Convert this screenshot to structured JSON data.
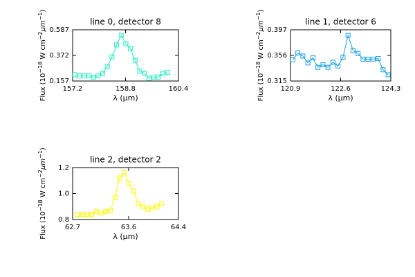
{
  "chart_data": [
    {
      "type": "line",
      "title": "line 0, detector 8",
      "xlabel": "λ (μm)",
      "ylabel": [
        "Flux (10",
        "−18",
        " W cm",
        "−2",
        "μm",
        "−1",
        ")"
      ],
      "xlim": [
        157.2,
        160.4
      ],
      "xticks": [
        157.2,
        158.8,
        160.4
      ],
      "ylim": [
        0.157,
        0.587
      ],
      "yticks": [
        0.157,
        0.372,
        0.587
      ],
      "x": [
        157.27,
        157.41,
        157.55,
        157.69,
        157.83,
        157.97,
        158.11,
        158.25,
        158.39,
        158.53,
        158.67,
        158.81,
        158.95,
        159.09,
        159.23,
        159.37,
        159.51,
        159.65,
        159.79,
        159.93,
        160.07
      ],
      "series": [
        {
          "color": "#22eec0",
          "values": [
            0.21,
            0.2,
            0.2,
            0.2,
            0.19,
            0.2,
            0.22,
            0.28,
            0.36,
            0.46,
            0.54,
            0.47,
            0.43,
            0.33,
            0.24,
            0.22,
            0.18,
            0.19,
            0.19,
            0.22,
            0.23
          ]
        }
      ]
    },
    {
      "type": "line",
      "title": "line 1, detector 6",
      "xlabel": "λ (μm)",
      "ylabel": [
        "Flux (10",
        "−18",
        " W cm",
        "−2",
        "μm",
        "−1",
        ")"
      ],
      "xlim": [
        120.9,
        124.3
      ],
      "xticks": [
        120.9,
        122.6,
        124.3
      ],
      "ylim": [
        0.315,
        0.397
      ],
      "yticks": [
        0.315,
        0.356,
        0.397
      ],
      "x": [
        120.98,
        121.15,
        121.32,
        121.49,
        121.66,
        121.83,
        122.0,
        122.17,
        122.34,
        122.51,
        122.68,
        122.85,
        123.02,
        123.19,
        123.36,
        123.53,
        123.7,
        123.87,
        124.04,
        124.21
      ],
      "series": [
        {
          "color": "#1aa0dc",
          "values": [
            0.349,
            0.36,
            0.355,
            0.344,
            0.352,
            0.337,
            0.341,
            0.337,
            0.345,
            0.339,
            0.353,
            0.388,
            0.364,
            0.359,
            0.35,
            0.35,
            0.35,
            0.351,
            0.333,
            0.325
          ]
        }
      ]
    },
    {
      "type": "line",
      "title": "line 2, detector 2",
      "xlabel": "λ (μm)",
      "ylabel": [
        "Flux (10",
        "−18",
        " W cm",
        "−2",
        "μm",
        "−1",
        ")"
      ],
      "xlim": [
        62.7,
        64.4
      ],
      "xticks": [
        62.7,
        63.6,
        64.4
      ],
      "ylim": [
        0.8,
        1.2
      ],
      "yticks": [
        0.8,
        {
          "value": 1.0,
          "label": "1.0"
        },
        1.2
      ],
      "x": [
        62.78,
        62.855,
        62.93,
        63.005,
        63.08,
        63.155,
        63.23,
        63.305,
        63.38,
        63.455,
        63.53,
        63.605,
        63.68,
        63.755,
        63.83,
        63.905,
        63.98,
        64.055,
        64.13
      ],
      "series": [
        {
          "color": "#ffff00",
          "values": [
            0.84,
            0.84,
            0.84,
            0.84,
            0.86,
            0.85,
            0.86,
            0.87,
            0.97,
            1.12,
            1.16,
            1.08,
            1.02,
            0.92,
            0.9,
            0.88,
            0.89,
            0.9,
            0.92
          ]
        }
      ]
    }
  ]
}
